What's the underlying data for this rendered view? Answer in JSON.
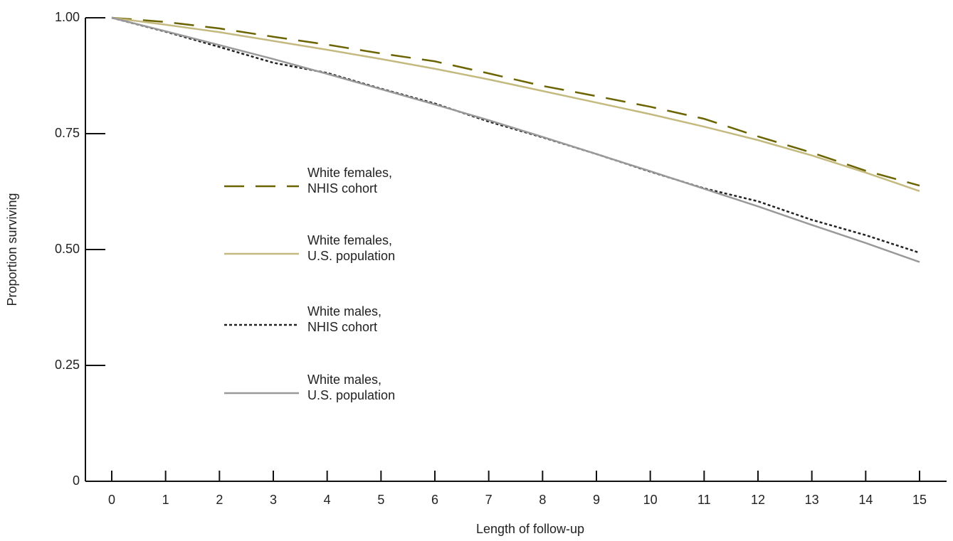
{
  "chart_data": {
    "type": "line",
    "x_label": "Length of follow-up",
    "y_label": "Proportion surviving",
    "x": [
      0,
      1,
      2,
      3,
      4,
      5,
      6,
      7,
      8,
      9,
      10,
      11,
      12,
      13,
      14,
      15
    ],
    "xlim": [
      -0.5,
      15.5
    ],
    "xticks": [
      0,
      1,
      2,
      3,
      4,
      5,
      6,
      7,
      8,
      9,
      10,
      11,
      12,
      13,
      14,
      15
    ],
    "ylim": [
      0,
      1
    ],
    "yticks": [
      0,
      0.25,
      {
        "value": 0.5,
        "label": "0.50"
      },
      0.75,
      {
        "value": 1,
        "label": "1.00"
      }
    ],
    "series": [
      {
        "name": "White females, NHIS cohort",
        "color": "#6b6400",
        "dash": "28,16",
        "values": [
          1,
          0.991,
          0.977,
          0.959,
          0.942,
          0.923,
          0.906,
          0.88,
          0.853,
          0.831,
          0.808,
          0.782,
          0.744,
          0.709,
          0.67,
          0.638
        ]
      },
      {
        "name": "White females, U.S. population",
        "color": "#c4b97f",
        "dash": "none",
        "values": [
          1,
          0.985,
          0.969,
          0.95,
          0.931,
          0.911,
          0.89,
          0.867,
          0.842,
          0.817,
          0.792,
          0.765,
          0.736,
          0.703,
          0.666,
          0.626
        ]
      },
      {
        "name": "White males, NHIS cohort",
        "color": "#222222",
        "dash": "4,3",
        "values": [
          1,
          0.97,
          0.937,
          0.903,
          0.881,
          0.847,
          0.815,
          0.776,
          0.742,
          0.706,
          0.668,
          0.632,
          0.604,
          0.564,
          0.531,
          0.493
        ]
      },
      {
        "name": "White males, U.S. population",
        "color": "#999999",
        "dash": "none",
        "values": [
          1,
          0.971,
          0.941,
          0.911,
          0.879,
          0.846,
          0.813,
          0.779,
          0.743,
          0.706,
          0.669,
          0.631,
          0.593,
          0.553,
          0.514,
          0.473
        ]
      }
    ]
  }
}
